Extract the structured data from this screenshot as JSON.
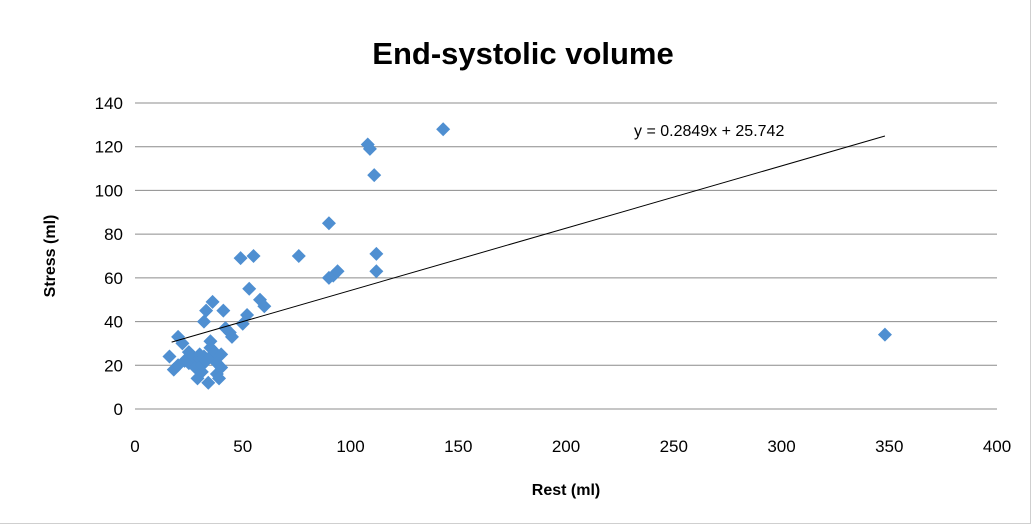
{
  "chart_data": {
    "type": "scatter",
    "title": "End-systolic volume",
    "xlabel": "Rest (ml)",
    "ylabel": "Stress (ml)",
    "xlim": [
      0,
      400
    ],
    "ylim": [
      0,
      140
    ],
    "xticks": [
      0,
      50,
      100,
      150,
      200,
      250,
      300,
      350,
      400
    ],
    "yticks": [
      0,
      20,
      40,
      60,
      80,
      100,
      120,
      140
    ],
    "grid": "horizontal",
    "marker": "diamond",
    "marker_color": "#4f8fd1",
    "trendline": {
      "type": "linear",
      "slope": 0.2849,
      "intercept": 25.742,
      "x_range": [
        17,
        348
      ],
      "equation_label": "y = 0.2849x + 25.742",
      "color": "#000000"
    },
    "points": [
      [
        16,
        24
      ],
      [
        18,
        18
      ],
      [
        20,
        33
      ],
      [
        20,
        20
      ],
      [
        22,
        30
      ],
      [
        23,
        22
      ],
      [
        25,
        21
      ],
      [
        25,
        26
      ],
      [
        27,
        24
      ],
      [
        28,
        19
      ],
      [
        29,
        14
      ],
      [
        30,
        23
      ],
      [
        30,
        25
      ],
      [
        31,
        17
      ],
      [
        31,
        20
      ],
      [
        32,
        24
      ],
      [
        32,
        40
      ],
      [
        33,
        45
      ],
      [
        33,
        22
      ],
      [
        34,
        12
      ],
      [
        35,
        31
      ],
      [
        35,
        28
      ],
      [
        36,
        49
      ],
      [
        36,
        25
      ],
      [
        37,
        26
      ],
      [
        38,
        21
      ],
      [
        38,
        16
      ],
      [
        39,
        14
      ],
      [
        40,
        25
      ],
      [
        40,
        19
      ],
      [
        41,
        45
      ],
      [
        42,
        37
      ],
      [
        44,
        35
      ],
      [
        45,
        33
      ],
      [
        49,
        69
      ],
      [
        50,
        39
      ],
      [
        52,
        43
      ],
      [
        53,
        55
      ],
      [
        55,
        70
      ],
      [
        58,
        50
      ],
      [
        60,
        47
      ],
      [
        76,
        70
      ],
      [
        90,
        85
      ],
      [
        90,
        60
      ],
      [
        92,
        61
      ],
      [
        94,
        63
      ],
      [
        108,
        121
      ],
      [
        109,
        119
      ],
      [
        111,
        107
      ],
      [
        112,
        71
      ],
      [
        112,
        63
      ],
      [
        143,
        128
      ],
      [
        348,
        34
      ]
    ]
  }
}
